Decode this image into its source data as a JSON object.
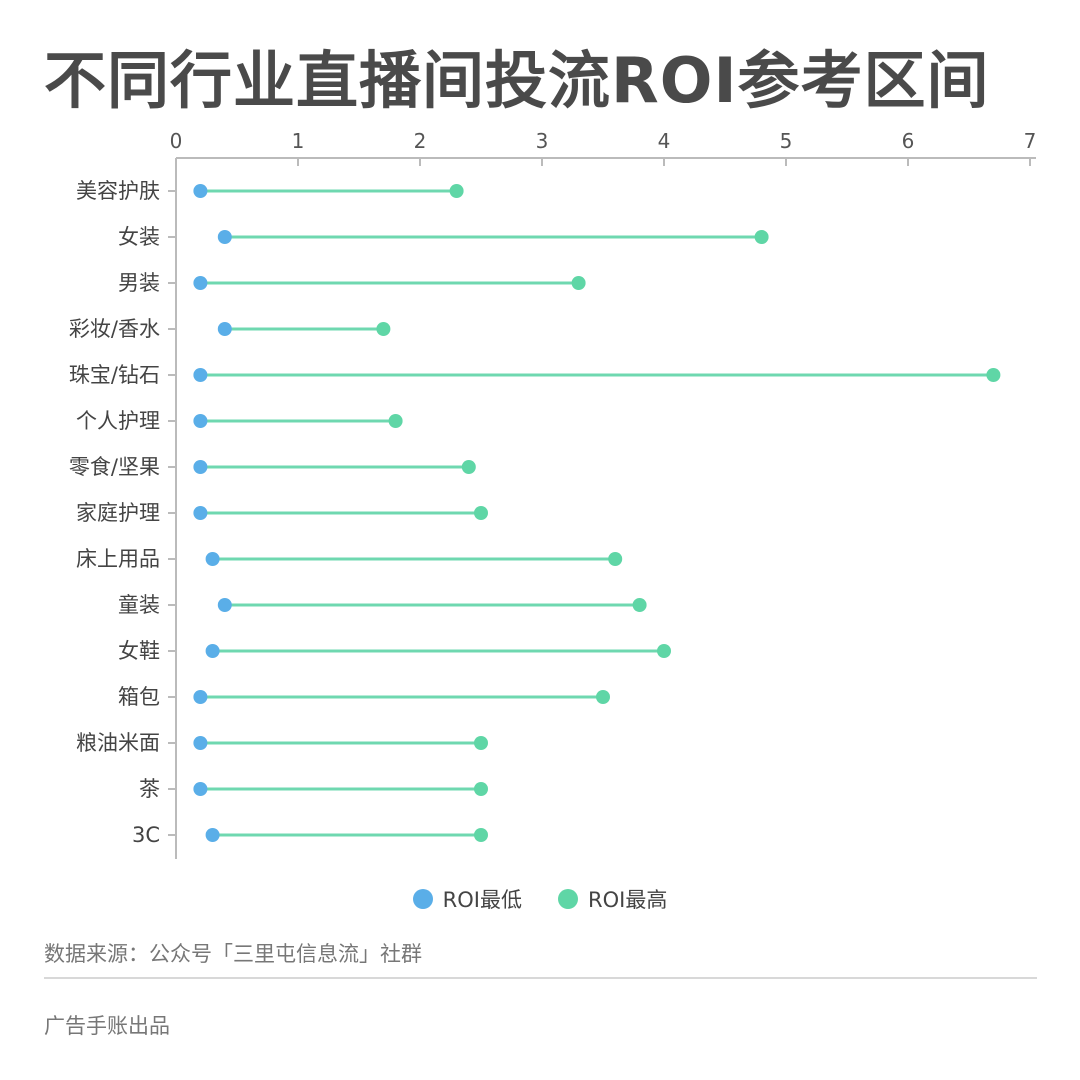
{
  "chart_data": {
    "type": "range-dot",
    "title": "不同行业直播间投流ROI参考区间",
    "xlabel": "",
    "ylabel": "",
    "xlim": [
      0,
      7
    ],
    "xticks": [
      0,
      1,
      2,
      3,
      4,
      5,
      6,
      7
    ],
    "categories": [
      "美容护肤",
      "女装",
      "男装",
      "彩妆/香水",
      "珠宝/钻石",
      "个人护理",
      "零食/坚果",
      "家庭护理",
      "床上用品",
      "童装",
      "女鞋",
      "箱包",
      "粮油米面",
      "茶",
      "3C"
    ],
    "series": [
      {
        "name": "ROI最低",
        "color": "#5aaee8",
        "values": [
          0.2,
          0.4,
          0.2,
          0.4,
          0.2,
          0.2,
          0.2,
          0.2,
          0.3,
          0.4,
          0.3,
          0.2,
          0.2,
          0.2,
          0.3
        ]
      },
      {
        "name": "ROI最高",
        "color": "#5fd6a6",
        "values": [
          2.3,
          4.8,
          3.3,
          1.7,
          6.7,
          1.8,
          2.4,
          2.5,
          3.6,
          3.8,
          4.0,
          3.5,
          2.5,
          2.5,
          2.5
        ]
      }
    ],
    "line_color": "#6fd8b0",
    "legend_position": "bottom",
    "grid": false
  },
  "source_text": "数据来源：公众号「三里屯信息流」社群",
  "footer_text": "广告手账出品"
}
